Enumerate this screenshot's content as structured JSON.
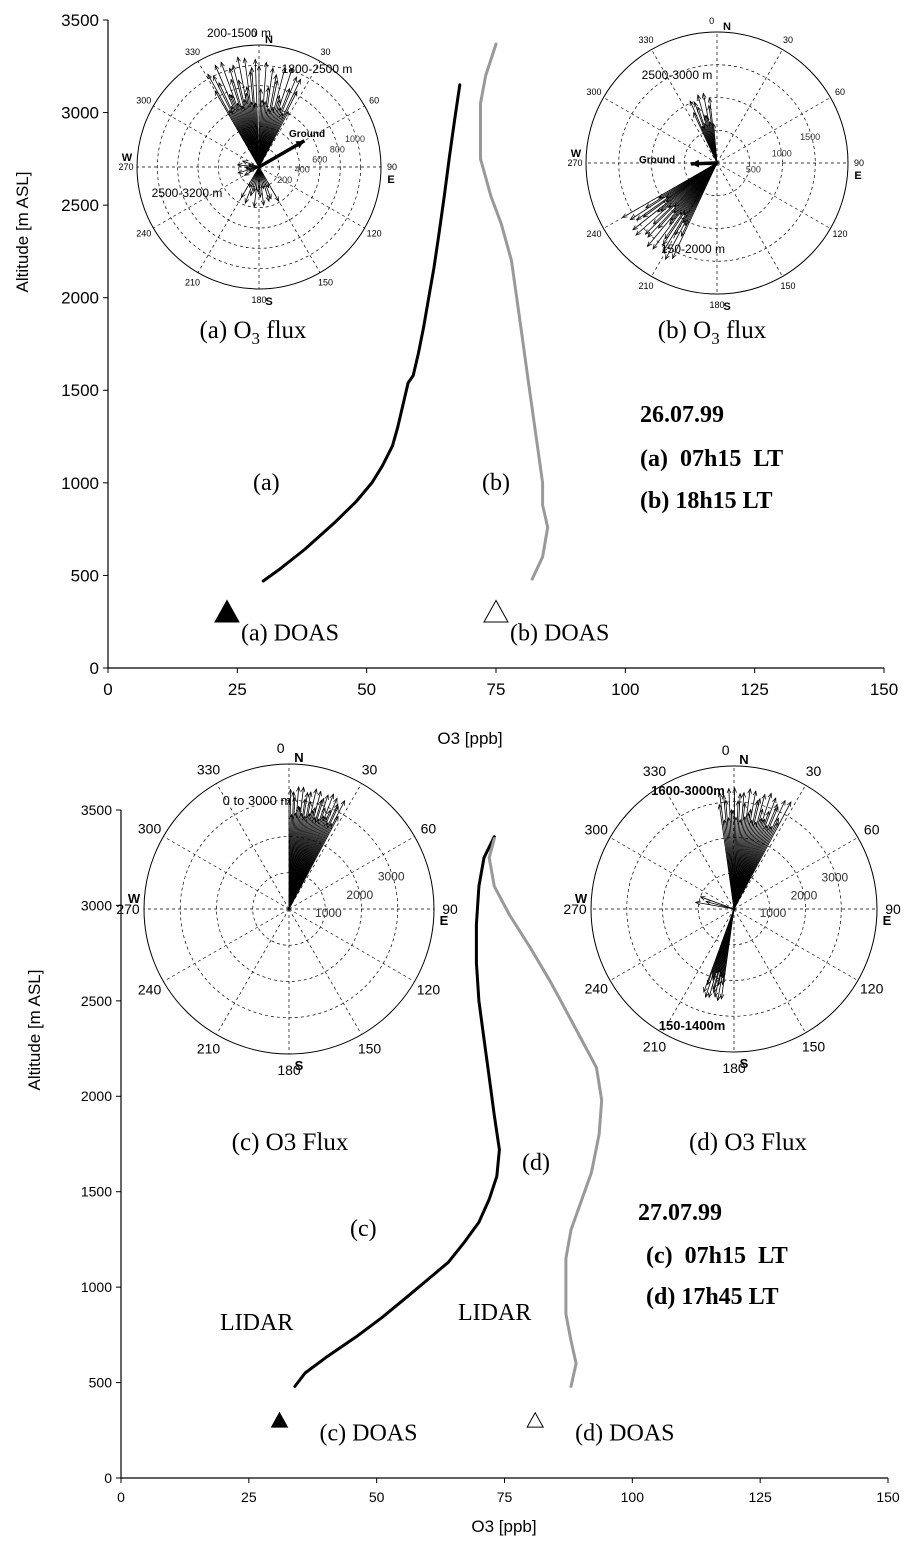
{
  "chart_data": [
    {
      "panel": "top",
      "type": "line",
      "xlabel": "O3 [ppb]",
      "ylabel": "Altitude [m ASL]",
      "xlim": [
        0,
        150
      ],
      "ylim": [
        0,
        3500
      ],
      "x_ticks": [
        "0",
        "25",
        "50",
        "75",
        "100",
        "125",
        "150"
      ],
      "y_ticks": [
        "0",
        "500",
        "1000",
        "1500",
        "2000",
        "2500",
        "3000",
        "3500"
      ],
      "grid": false,
      "series": [
        {
          "name": "(a)",
          "color": "#000000",
          "points": [
            [
              30,
              470
            ],
            [
              33,
              530
            ],
            [
              38,
              640
            ],
            [
              44,
              790
            ],
            [
              48,
              900
            ],
            [
              51,
              1000
            ],
            [
              53,
              1090
            ],
            [
              55,
              1200
            ],
            [
              56,
              1300
            ],
            [
              57,
              1420
            ],
            [
              58,
              1540
            ],
            [
              59,
              1580
            ],
            [
              60,
              1700
            ],
            [
              61,
              1840
            ],
            [
              62,
              2000
            ],
            [
              63,
              2160
            ],
            [
              64,
              2350
            ],
            [
              65,
              2550
            ],
            [
              66,
              2760
            ],
            [
              67,
              2960
            ],
            [
              68,
              3150
            ]
          ]
        },
        {
          "name": "(b)",
          "color": "#999999",
          "points": [
            [
              82,
              480
            ],
            [
              84,
              600
            ],
            [
              85,
              760
            ],
            [
              84,
              880
            ],
            [
              84,
              1000
            ],
            [
              83,
              1200
            ],
            [
              82,
              1400
            ],
            [
              81,
              1600
            ],
            [
              80,
              1800
            ],
            [
              79,
              2000
            ],
            [
              78,
              2200
            ],
            [
              76,
              2400
            ],
            [
              74,
              2550
            ],
            [
              73,
              2650
            ],
            [
              72,
              2750
            ],
            [
              72,
              2900
            ],
            [
              72,
              3050
            ],
            [
              73,
              3200
            ],
            [
              75,
              3370
            ]
          ]
        }
      ],
      "markers": [
        {
          "label": "(a) DOAS",
          "x": 23,
          "y": 300,
          "symbol": "triangle-filled"
        },
        {
          "label": "(b) DOAS",
          "x": 75,
          "y": 300,
          "symbol": "triangle-open"
        }
      ],
      "curve_labels": [
        "(a)",
        "(b)"
      ],
      "annotation_lines": [
        "26.07.99",
        "(a)  07h15  LT",
        "(b) 18h15 LT"
      ],
      "insets": [
        {
          "type": "polar",
          "caption_prefix": "(a) O",
          "caption_sub": "3",
          "caption_suffix": " flux",
          "angle_labels": [
            "0",
            "30",
            "60",
            "90",
            "120",
            "150",
            "180",
            "210",
            "240",
            "270",
            "300",
            "330"
          ],
          "compass": [
            "N",
            "E",
            "S",
            "W"
          ],
          "radial_labels": [
            "200",
            "400",
            "600",
            "800",
            "1000"
          ],
          "rmax": 1000,
          "range_labels": [
            "200-1500 m",
            "1800-2500 m",
            "2500-3200 m"
          ],
          "ground_label": "Ground",
          "ground_vector": {
            "dir": 60,
            "mag": 430
          },
          "vector_groups": [
            {
              "dir_min": 330,
              "dir_max": 358,
              "mag_min": 520,
              "mag_max": 920,
              "count": 26
            },
            {
              "dir_min": 0,
              "dir_max": 28,
              "mag_min": 480,
              "mag_max": 860,
              "count": 22
            },
            {
              "dir_min": 150,
              "dir_max": 210,
              "mag_min": 180,
              "mag_max": 330,
              "count": 14
            },
            {
              "dir_min": 240,
              "dir_max": 290,
              "mag_min": 80,
              "mag_max": 180,
              "count": 8
            }
          ]
        },
        {
          "type": "polar",
          "caption_prefix": "(b) O",
          "caption_sub": "3",
          "caption_suffix": " flux",
          "angle_labels": [
            "0",
            "30",
            "60",
            "90",
            "120",
            "150",
            "180",
            "210",
            "240",
            "270",
            "300",
            "330"
          ],
          "compass": [
            "N",
            "E",
            "S",
            "W"
          ],
          "radial_labels": [
            "500",
            "1000",
            "1500"
          ],
          "rmax": 1500,
          "range_labels": [
            "2500-3000 m",
            "150-2000 m"
          ],
          "ground_label": "Ground",
          "ground_vector": {
            "dir": 268,
            "mag": 300
          },
          "vector_groups": [
            {
              "dir_min": 335,
              "dir_max": 355,
              "mag_min": 450,
              "mag_max": 820,
              "count": 14
            },
            {
              "dir_min": 205,
              "dir_max": 240,
              "mag_min": 700,
              "mag_max": 1250,
              "count": 34
            }
          ]
        }
      ]
    },
    {
      "panel": "bottom",
      "type": "line",
      "xlabel": "O3 [ppb]",
      "ylabel": "Altitude [m ASL]",
      "xlim": [
        0,
        150
      ],
      "ylim": [
        0,
        3500
      ],
      "x_ticks": [
        "0",
        "25",
        "50",
        "75",
        "100",
        "125",
        "150"
      ],
      "y_ticks": [
        "0",
        "500",
        "1000",
        "1500",
        "2000",
        "2500",
        "3000",
        "3500"
      ],
      "grid": false,
      "series": [
        {
          "name": "(c)",
          "color": "#000000",
          "points": [
            [
              34,
              480
            ],
            [
              36,
              550
            ],
            [
              40,
              630
            ],
            [
              46,
              740
            ],
            [
              51,
              840
            ],
            [
              56,
              950
            ],
            [
              60,
              1040
            ],
            [
              64,
              1130
            ],
            [
              67,
              1230
            ],
            [
              70,
              1340
            ],
            [
              72,
              1460
            ],
            [
              73.5,
              1580
            ],
            [
              74,
              1720
            ],
            [
              73,
              1900
            ],
            [
              72,
              2100
            ],
            [
              71,
              2300
            ],
            [
              70,
              2500
            ],
            [
              69.5,
              2700
            ],
            [
              69.5,
              2900
            ],
            [
              70,
              3100
            ],
            [
              71,
              3250
            ],
            [
              73,
              3360
            ]
          ]
        },
        {
          "name": "(d)",
          "color": "#999999",
          "points": [
            [
              88,
              480
            ],
            [
              89,
              600
            ],
            [
              88,
              720
            ],
            [
              87,
              860
            ],
            [
              87,
              1000
            ],
            [
              87,
              1150
            ],
            [
              88,
              1300
            ],
            [
              90,
              1450
            ],
            [
              92,
              1600
            ],
            [
              93.5,
              1800
            ],
            [
              94,
              1980
            ],
            [
              93,
              2150
            ],
            [
              90,
              2300
            ],
            [
              87,
              2450
            ],
            [
              84,
              2600
            ],
            [
              80,
              2780
            ],
            [
              76,
              2950
            ],
            [
              73,
              3100
            ],
            [
              72,
              3250
            ],
            [
              73,
              3350
            ]
          ]
        }
      ],
      "markers": [
        {
          "label": "(c) DOAS",
          "x": 31,
          "y": 300,
          "symbol": "triangle-filled"
        },
        {
          "label": "(d) DOAS",
          "x": 81,
          "y": 300,
          "symbol": "triangle-open"
        }
      ],
      "curve_labels": [
        "(c)",
        "(d)",
        "LIDAR",
        "LIDAR"
      ],
      "annotation_lines": [
        "27.07.99",
        "(c)  07h15  LT",
        "(d) 17h45 LT"
      ],
      "insets": [
        {
          "type": "polar",
          "caption_prefix": "(c) O3 Flux",
          "caption_sub": "",
          "caption_suffix": "",
          "angle_labels": [
            "0",
            "30",
            "60",
            "90",
            "120",
            "150",
            "180",
            "210",
            "240",
            "270",
            "300",
            "330"
          ],
          "compass": [
            "N",
            "E",
            "S",
            "W"
          ],
          "radial_labels": [
            "1000",
            "2000",
            "3000"
          ],
          "rmax": 4000,
          "range_labels": [
            "0 to 3000 m"
          ],
          "ground_label": "",
          "vector_groups": [
            {
              "dir_min": 0,
              "dir_max": 28,
              "mag_min": 2600,
              "mag_max": 3400,
              "count": 38
            }
          ]
        },
        {
          "type": "polar",
          "caption_prefix": "(d) O3 Flux",
          "caption_sub": "",
          "caption_suffix": "",
          "angle_labels": [
            "0",
            "30",
            "60",
            "90",
            "120",
            "150",
            "180",
            "210",
            "240",
            "270",
            "300",
            "330"
          ],
          "compass": [
            "N",
            "E",
            "S",
            "W"
          ],
          "radial_labels": [
            "1000",
            "2000",
            "3000"
          ],
          "rmax": 4000,
          "range_labels": [
            "1600-3000m",
            "150-1400m"
          ],
          "ground_label": "",
          "vector_groups": [
            {
              "dir_min": 352,
              "dir_max": 28,
              "mag_min": 2500,
              "mag_max": 3400,
              "count": 40
            },
            {
              "dir_min": 188,
              "dir_max": 200,
              "mag_min": 1800,
              "mag_max": 2600,
              "count": 18
            },
            {
              "dir_min": 280,
              "dir_max": 290,
              "mag_min": 800,
              "mag_max": 1100,
              "count": 3
            }
          ]
        }
      ]
    }
  ]
}
